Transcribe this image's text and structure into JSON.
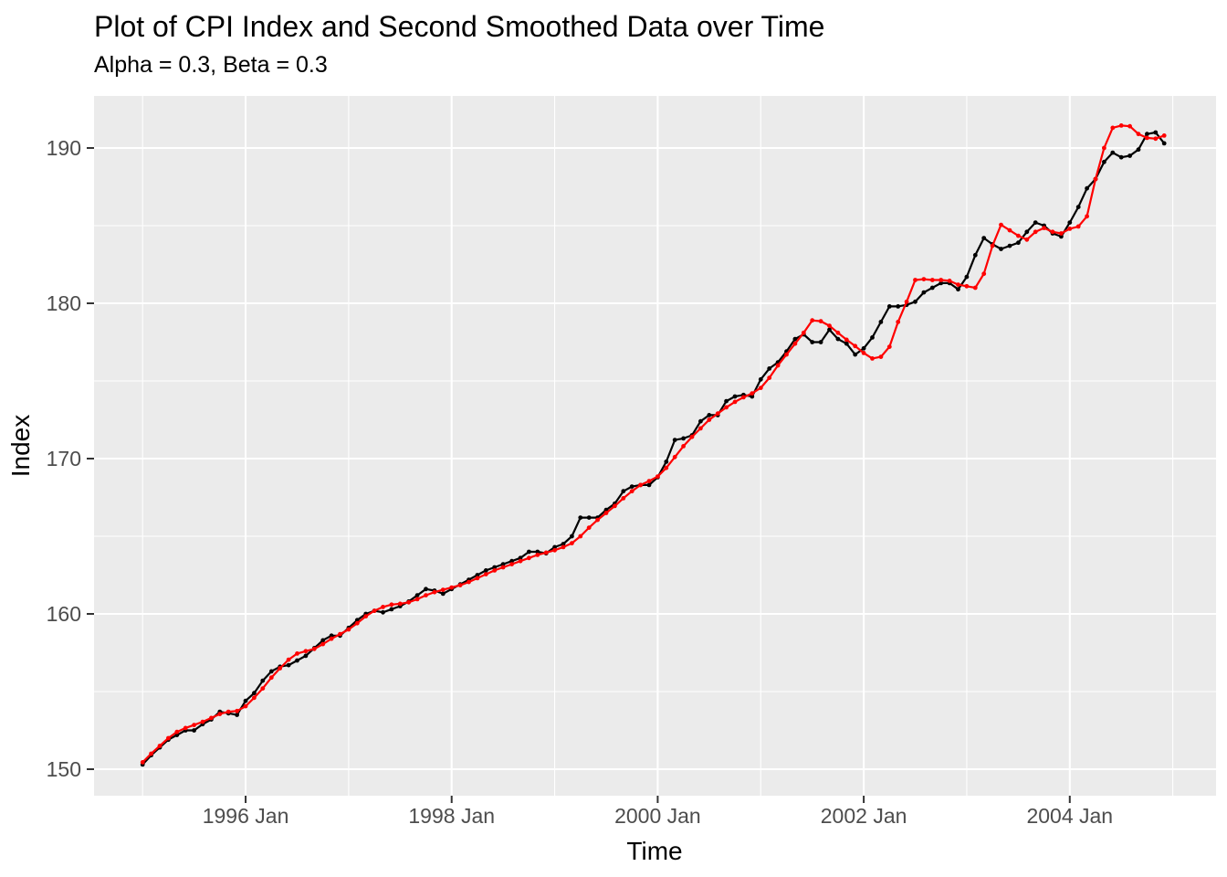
{
  "chart_data": {
    "type": "line",
    "title": "Plot of CPI Index and Second Smoothed Data over Time",
    "subtitle": "Alpha = 0.3, Beta = 0.3",
    "xlabel": "Time",
    "ylabel": "Index",
    "x_unit": "month",
    "x_start": "1995 Jan",
    "x_end": "2004 Dec",
    "n_points": 120,
    "x_tick_labels": [
      "1996 Jan",
      "1998 Jan",
      "2000 Jan",
      "2002 Jan",
      "2004 Jan"
    ],
    "x_tick_month_indices": [
      12,
      36,
      60,
      84,
      108
    ],
    "x_minor_month_indices": [
      0,
      24,
      48,
      72,
      96,
      120
    ],
    "y_tick_labels": [
      "150",
      "160",
      "170",
      "180",
      "190"
    ],
    "y_ticks": [
      150,
      160,
      170,
      180,
      190
    ],
    "y_minor_ticks": [
      155,
      165,
      175,
      185
    ],
    "ylim": [
      148.2,
      193.4
    ],
    "grid": true,
    "legend": false,
    "style": {
      "panel_bg": "#EBEBEB",
      "grid_color": "#FFFFFF",
      "tick_label_color": "#4D4D4D",
      "tick_mark_color": "#333333",
      "title_color": "#000000"
    },
    "series": [
      {
        "name": "CPI Index",
        "color": "#000000",
        "marker": "point",
        "values": [
          150.3,
          150.9,
          151.4,
          151.9,
          152.2,
          152.5,
          152.5,
          152.9,
          153.2,
          153.7,
          153.6,
          153.5,
          154.4,
          154.9,
          155.7,
          156.3,
          156.6,
          156.7,
          157.0,
          157.3,
          157.8,
          158.3,
          158.6,
          158.6,
          159.1,
          159.6,
          160.0,
          160.2,
          160.1,
          160.3,
          160.5,
          160.8,
          161.2,
          161.6,
          161.5,
          161.3,
          161.6,
          161.9,
          162.2,
          162.5,
          162.8,
          163.0,
          163.2,
          163.4,
          163.6,
          164.0,
          164.0,
          163.9,
          164.3,
          164.5,
          165.0,
          166.2,
          166.2,
          166.2,
          166.7,
          167.1,
          167.9,
          168.2,
          168.3,
          168.3,
          168.8,
          169.8,
          171.2,
          171.3,
          171.5,
          172.4,
          172.8,
          172.8,
          173.7,
          174.0,
          174.1,
          174.0,
          175.1,
          175.8,
          176.2,
          176.9,
          177.7,
          178.0,
          177.5,
          177.5,
          178.3,
          177.7,
          177.4,
          176.7,
          177.1,
          177.8,
          178.8,
          179.8,
          179.8,
          179.9,
          180.1,
          180.7,
          181.0,
          181.3,
          181.3,
          180.9,
          181.7,
          183.1,
          184.2,
          183.8,
          183.5,
          183.7,
          183.9,
          184.6,
          185.2,
          185.0,
          184.5,
          184.3,
          185.2,
          186.2,
          187.4,
          188.0,
          189.1,
          189.7,
          189.4,
          189.5,
          189.9,
          190.9,
          191.0,
          190.3
        ]
      },
      {
        "name": "Second Smoothed Data",
        "color": "#FF0000",
        "marker": "point",
        "alpha": 0.3,
        "beta": 0.3,
        "values": [
          150.45,
          151.0,
          151.5,
          152.0,
          152.4,
          152.65,
          152.85,
          153.05,
          153.3,
          153.55,
          153.7,
          153.75,
          154.05,
          154.6,
          155.2,
          155.9,
          156.5,
          157.05,
          157.45,
          157.6,
          157.75,
          158.05,
          158.4,
          158.7,
          159.0,
          159.4,
          159.85,
          160.2,
          160.45,
          160.6,
          160.65,
          160.75,
          160.95,
          161.2,
          161.4,
          161.55,
          161.7,
          161.85,
          162.05,
          162.3,
          162.55,
          162.8,
          163.0,
          163.2,
          163.4,
          163.6,
          163.8,
          163.95,
          164.1,
          164.3,
          164.55,
          165.0,
          165.55,
          166.05,
          166.5,
          166.95,
          167.45,
          167.9,
          168.3,
          168.55,
          168.85,
          169.4,
          170.1,
          170.8,
          171.4,
          171.95,
          172.5,
          172.9,
          173.3,
          173.65,
          173.95,
          174.2,
          174.55,
          175.2,
          176.0,
          176.7,
          177.4,
          178.1,
          178.9,
          178.85,
          178.55,
          178.1,
          177.65,
          177.25,
          176.8,
          176.45,
          176.55,
          177.2,
          178.8,
          180.1,
          181.5,
          181.55,
          181.5,
          181.5,
          181.45,
          181.2,
          181.1,
          181.0,
          181.9,
          183.7,
          185.05,
          184.7,
          184.35,
          184.1,
          184.6,
          184.85,
          184.6,
          184.5,
          184.8,
          184.95,
          185.6,
          188.0,
          190.0,
          191.3,
          191.45,
          191.4,
          190.9,
          190.65,
          190.6,
          190.8
        ]
      }
    ]
  }
}
